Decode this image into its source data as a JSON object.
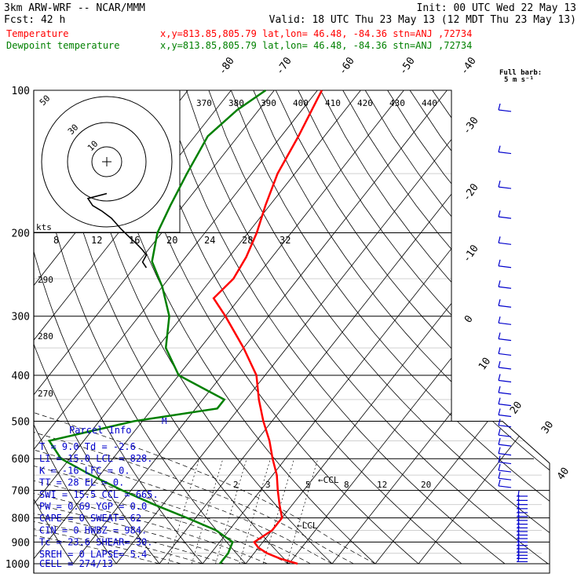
{
  "header": {
    "model": "3km ARW-WRF -- NCAR/MMM",
    "init": "Init: 00 UTC Wed 22 May 13",
    "fcst": "Fcst:   42 h",
    "valid": "Valid: 18 UTC Thu 23 May 13 (12 MDT Thu 23 May 13)",
    "temp_label": "Temperature",
    "temp_loc": "x,y=813.85,805.79   lat,lon= 46.48, -84.36   stn=ANJ ,72734",
    "dew_label": "Dewpoint temperature",
    "dew_loc": "x,y=813.85,805.79   lat,lon= 46.48, -84.36   stn=ANJ ,72734",
    "barb_title_1": "Full barb:",
    "barb_title_2": "5 m s⁻¹"
  },
  "colors": {
    "temperature": "#ff0000",
    "dewpoint": "#008000",
    "grid": "#000000",
    "lower_text": "#0000cc"
  },
  "chart_data": {
    "type": "line",
    "title": "",
    "ylabel": "",
    "pressure_ticks": [
      100,
      200,
      300,
      400,
      500,
      600,
      700,
      800,
      900,
      1000
    ],
    "isotherm_labels": [
      "-80",
      "-70",
      "-60",
      "-50",
      "-40",
      "-30",
      "-20",
      "-10",
      "0",
      "10",
      "20",
      "30",
      "40"
    ],
    "theta_e_labels": [
      "370",
      "380",
      "390",
      "400",
      "410",
      "420",
      "430",
      "440"
    ],
    "hodograph_speed_labels": [
      "8",
      "12",
      "16",
      "20",
      "24",
      "28",
      "32"
    ],
    "hodograph_units": "kts",
    "hodograph_ring_labels": [
      "50",
      "30",
      "10"
    ],
    "lower_labels": [
      "290",
      "280",
      "270",
      "2",
      "3",
      "5",
      "8",
      "12",
      "20",
      "M",
      "CCL",
      "LCL"
    ],
    "series": [
      {
        "name": "Temperature",
        "points": [
          {
            "p": 1000,
            "t": 22
          },
          {
            "p": 975,
            "t": 17
          },
          {
            "p": 950,
            "t": 13
          },
          {
            "p": 925,
            "t": 10
          },
          {
            "p": 900,
            "t": 8
          },
          {
            "p": 850,
            "t": 10
          },
          {
            "p": 800,
            "t": 10
          },
          {
            "p": 750,
            "t": 7
          },
          {
            "p": 700,
            "t": 4
          },
          {
            "p": 650,
            "t": 1
          },
          {
            "p": 600,
            "t": -3
          },
          {
            "p": 550,
            "t": -7
          },
          {
            "p": 500,
            "t": -12
          },
          {
            "p": 450,
            "t": -17
          },
          {
            "p": 400,
            "t": -22
          },
          {
            "p": 350,
            "t": -30
          },
          {
            "p": 300,
            "t": -40
          },
          {
            "p": 275,
            "t": -46
          },
          {
            "p": 250,
            "t": -45
          },
          {
            "p": 225,
            "t": -46
          },
          {
            "p": 200,
            "t": -48
          },
          {
            "p": 175,
            "t": -51
          },
          {
            "p": 150,
            "t": -54
          },
          {
            "p": 125,
            "t": -56
          },
          {
            "p": 100,
            "t": -59
          }
        ]
      },
      {
        "name": "Dewpoint temperature",
        "points": [
          {
            "p": 1000,
            "t": 4
          },
          {
            "p": 950,
            "t": 4
          },
          {
            "p": 900,
            "t": 3
          },
          {
            "p": 850,
            "t": -3
          },
          {
            "p": 800,
            "t": -12
          },
          {
            "p": 750,
            "t": -22
          },
          {
            "p": 700,
            "t": -32
          },
          {
            "p": 650,
            "t": -42
          },
          {
            "p": 600,
            "t": -52
          },
          {
            "p": 550,
            "t": -58
          },
          {
            "p": 500,
            "t": -42
          },
          {
            "p": 470,
            "t": -25
          },
          {
            "p": 450,
            "t": -25
          },
          {
            "p": 400,
            "t": -40
          },
          {
            "p": 350,
            "t": -48
          },
          {
            "p": 300,
            "t": -53
          },
          {
            "p": 260,
            "t": -60
          },
          {
            "p": 230,
            "t": -67
          },
          {
            "p": 200,
            "t": -71
          },
          {
            "p": 175,
            "t": -73
          },
          {
            "p": 150,
            "t": -75
          },
          {
            "p": 125,
            "t": -77
          },
          {
            "p": 110,
            "t": -75
          },
          {
            "p": 100,
            "t": -72
          }
        ]
      }
    ],
    "hodograph": [
      [
        0,
        -45
      ],
      [
        -20,
        -52
      ],
      [
        -15,
        -62
      ],
      [
        -5,
        -70
      ],
      [
        5,
        -80
      ],
      [
        15,
        -95
      ],
      [
        25,
        -108
      ],
      [
        33,
        -118
      ],
      [
        38,
        -125
      ],
      [
        42,
        -132
      ],
      [
        38,
        -142
      ],
      [
        42,
        -150
      ]
    ]
  },
  "parcel_info": {
    "title": "Parcel Info",
    "rows": [
      [
        "T",
        "9.0",
        "Td",
        "-2.6"
      ],
      [
        "LI",
        "15.0",
        "LCL",
        "828."
      ],
      [
        "K",
        "-16",
        "LFC",
        "0."
      ],
      [
        "TT",
        "28",
        "EL",
        "0."
      ],
      [
        "SWI",
        "15.5",
        "CCL",
        "665."
      ],
      [
        "PW",
        "0.69",
        "YGP",
        "0.0"
      ],
      [
        "CAPE",
        "0",
        "SWEAT",
        "62"
      ],
      [
        "CIN",
        "0",
        "HWBZ",
        "984."
      ],
      [
        "Tc",
        "23.6",
        "SHEAR",
        "30."
      ],
      [
        "SREH",
        "0",
        "LAPSE",
        "5.4"
      ]
    ],
    "cell": "CELL = 274/13"
  }
}
